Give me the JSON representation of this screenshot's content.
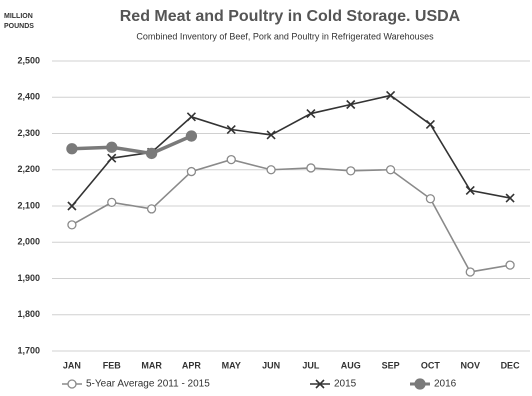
{
  "chart_data": {
    "type": "line",
    "title": "Red Meat and Poultry in Cold Storage.  USDA",
    "subtitle": "Combined Inventory of Beef, Pork and Poultry in Refrigerated Warehouses",
    "y_label": "MILLION POUNDS",
    "categories": [
      "JAN",
      "FEB",
      "MAR",
      "APR",
      "MAY",
      "JUN",
      "JUL",
      "AUG",
      "SEP",
      "OCT",
      "NOV",
      "DEC"
    ],
    "series": [
      {
        "name": "5-Year Average  2011 - 2015",
        "color": "#8a8a8a",
        "marker": "open-circle",
        "values": [
          2048,
          2110,
          2092,
          2195,
          2228,
          2200,
          2205,
          2197,
          2200,
          2120,
          1918,
          1937
        ]
      },
      {
        "name": "2015",
        "color": "#333333",
        "marker": "x",
        "values": [
          2100,
          2232,
          2248,
          2346,
          2311,
          2296,
          2355,
          2380,
          2405,
          2325,
          2143,
          2122
        ]
      },
      {
        "name": "2016",
        "color": "#7a7a7a",
        "marker": "filled-circle",
        "values": [
          2258,
          2262,
          2245,
          2293,
          null,
          null,
          null,
          null,
          null,
          null,
          null,
          null
        ]
      }
    ],
    "ylim": [
      1700,
      2500
    ],
    "yticks": [
      {
        "value": 1700,
        "label": "1,700"
      },
      {
        "value": 1800,
        "label": "1,800"
      },
      {
        "value": 1900,
        "label": "1,900"
      },
      {
        "value": 2000,
        "label": "2,000"
      },
      {
        "value": 2100,
        "label": "2,100"
      },
      {
        "value": 2200,
        "label": "2,200"
      },
      {
        "value": 2300,
        "label": "2,300"
      },
      {
        "value": 2400,
        "label": "2,400"
      },
      {
        "value": 2500,
        "label": "2,500"
      }
    ],
    "grid": true
  }
}
